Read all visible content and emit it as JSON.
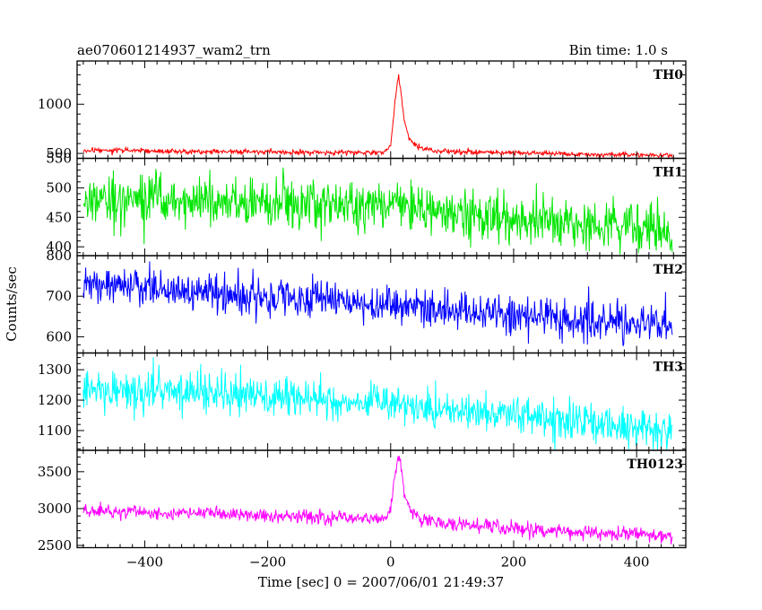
{
  "chart_data": {
    "type": "line",
    "title": "ae070601214937_wam2_trn",
    "subtitle": "Bin time: 1.0 s",
    "xlabel": "Time [sec] 0 = 2007/06/01 21:49:37",
    "ylabel": "Counts/sec",
    "xlim": [
      -510,
      480
    ],
    "x_ticks": [
      -400,
      -200,
      0,
      200,
      400
    ],
    "x_range": [
      -500,
      458
    ],
    "bin_time": 1.0,
    "panels": [
      {
        "name": "TH0",
        "color": "#ff0000",
        "ylim": [
          450,
          1440
        ],
        "y_ticks": [
          500,
          1000
        ],
        "y_tick_labels": [
          "500",
          "1000"
        ],
        "keypoints": [
          [
            -500,
            530
          ],
          [
            -300,
            520
          ],
          [
            -100,
            510
          ],
          [
            -10,
            510
          ],
          [
            0,
            570
          ],
          [
            5,
            900
          ],
          [
            10,
            1180
          ],
          [
            13,
            1300
          ],
          [
            16,
            1150
          ],
          [
            22,
            850
          ],
          [
            30,
            650
          ],
          [
            45,
            560
          ],
          [
            80,
            520
          ],
          [
            200,
            505
          ],
          [
            300,
            495
          ],
          [
            458,
            480
          ]
        ],
        "noise_sd": 13,
        "max_y": 1440
      },
      {
        "name": "TH1",
        "color": "#00e600",
        "ylim": [
          385,
          550
        ],
        "y_ticks": [
          400,
          450,
          500,
          550
        ],
        "y_tick_labels": [
          "400",
          "450",
          "500",
          "550"
        ],
        "keypoints": [
          [
            -500,
            478
          ],
          [
            -300,
            478
          ],
          [
            -100,
            470
          ],
          [
            0,
            466
          ],
          [
            15,
            478
          ],
          [
            50,
            462
          ],
          [
            200,
            450
          ],
          [
            300,
            440
          ],
          [
            458,
            425
          ]
        ],
        "noise_sd": 22,
        "max_y": 545
      },
      {
        "name": "TH2",
        "color": "#0000ff",
        "ylim": [
          560,
          800
        ],
        "y_ticks": [
          600,
          700,
          800
        ],
        "y_tick_labels": [
          "600",
          "700",
          "800"
        ],
        "keypoints": [
          [
            -500,
            730
          ],
          [
            -300,
            710
          ],
          [
            -100,
            690
          ],
          [
            0,
            675
          ],
          [
            200,
            658
          ],
          [
            300,
            648
          ],
          [
            458,
            628
          ]
        ],
        "noise_sd": 24,
        "max_y": 800
      },
      {
        "name": "TH3",
        "color": "#00ffff",
        "ylim": [
          1035,
          1355
        ],
        "y_ticks": [
          1100,
          1200,
          1300
        ],
        "y_tick_labels": [
          "1100",
          "1200",
          "1300"
        ],
        "keypoints": [
          [
            -500,
            1235
          ],
          [
            -300,
            1225
          ],
          [
            -100,
            1200
          ],
          [
            0,
            1185
          ],
          [
            200,
            1150
          ],
          [
            300,
            1130
          ],
          [
            458,
            1095
          ]
        ],
        "noise_sd": 32,
        "max_y": 1355
      },
      {
        "name": "TH0123",
        "color": "#ff00ff",
        "ylim": [
          2470,
          3790
        ],
        "y_ticks": [
          2500,
          3000,
          3500
        ],
        "y_tick_labels": [
          "2500",
          "3000",
          "3500"
        ],
        "keypoints": [
          [
            -500,
            2960
          ],
          [
            -300,
            2930
          ],
          [
            -100,
            2880
          ],
          [
            -10,
            2860
          ],
          [
            0,
            2980
          ],
          [
            5,
            3300
          ],
          [
            10,
            3620
          ],
          [
            13,
            3760
          ],
          [
            16,
            3580
          ],
          [
            22,
            3250
          ],
          [
            32,
            2960
          ],
          [
            50,
            2860
          ],
          [
            100,
            2790
          ],
          [
            200,
            2730
          ],
          [
            300,
            2690
          ],
          [
            458,
            2620
          ]
        ],
        "noise_sd": 45,
        "max_y": 3790
      }
    ]
  }
}
